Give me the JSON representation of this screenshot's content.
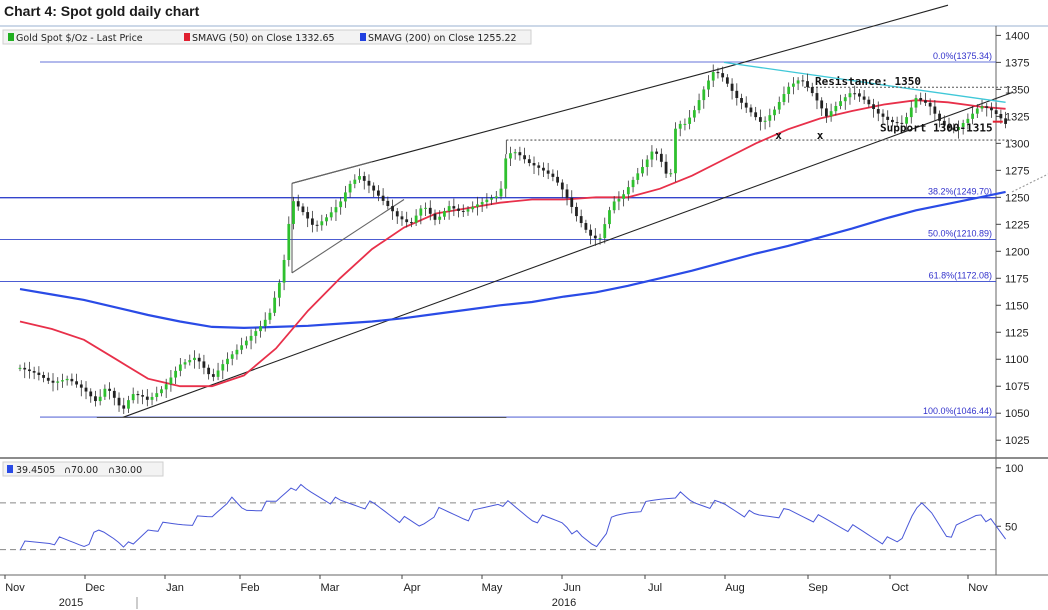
{
  "title": "Chart 4: Spot gold daily chart",
  "legend": [
    {
      "label": "Gold Spot $/Oz - Last Price",
      "color": "#22b022"
    },
    {
      "label": "SMAVG (50) on Close 1332.65",
      "color": "#e02030"
    },
    {
      "label": "SMAVG (200) on Close 1255.22",
      "color": "#2040e0"
    }
  ],
  "rsi_legend": {
    "value": "39.4505",
    "upper": "70.00",
    "lower": "30.00"
  },
  "annotations": {
    "resistance": "Resistance: 1350",
    "support": "Support 1300-1315",
    "x_marks": [
      "x",
      "x"
    ]
  },
  "chart_data": {
    "type": "candlestick",
    "y_ticks": [
      1025,
      1050,
      1075,
      1100,
      1125,
      1150,
      1175,
      1200,
      1225,
      1250,
      1275,
      1300,
      1325,
      1350,
      1375,
      1400
    ],
    "ylim": [
      1015,
      1405
    ],
    "rsi_ticks": [
      50,
      100
    ],
    "rsi_lim": [
      10,
      105
    ],
    "rsi_levels": [
      70,
      30
    ],
    "x_month_labels": [
      "Nov",
      "Dec",
      "Jan",
      "Feb",
      "Mar",
      "Apr",
      "May",
      "Jun",
      "Jul",
      "Aug",
      "Sep",
      "Oct",
      "Nov"
    ],
    "x_year_labels": [
      {
        "label": "2015",
        "under": "Nov"
      },
      {
        "label": "2016",
        "under": "Jun"
      }
    ],
    "fibonacci": [
      {
        "label": "0.0%(1375.34)",
        "value": 1375.34
      },
      {
        "label": "38.2%(1249.70)",
        "value": 1249.7
      },
      {
        "label": "50.0%(1210.89)",
        "value": 1210.89
      },
      {
        "label": "61.8%(1172.08)",
        "value": 1172.08
      },
      {
        "label": "100.0%(1046.44)",
        "value": 1046.44
      }
    ],
    "price_anchors": [
      [
        0,
        1092
      ],
      [
        0.5,
        1087
      ],
      [
        1,
        1078
      ],
      [
        1.5,
        1082
      ],
      [
        2,
        1072
      ],
      [
        2.4,
        1060
      ],
      [
        2.7,
        1075
      ],
      [
        3,
        1062
      ],
      [
        3.2,
        1052
      ],
      [
        3.5,
        1068
      ],
      [
        3.8,
        1066
      ],
      [
        4,
        1062
      ],
      [
        4.5,
        1074
      ],
      [
        5,
        1095
      ],
      [
        5.5,
        1102
      ],
      [
        6,
        1082
      ],
      [
        6.4,
        1098
      ],
      [
        7,
        1115
      ],
      [
        7.5,
        1130
      ],
      [
        7.8,
        1142
      ],
      [
        8.2,
        1180
      ],
      [
        8.5,
        1248
      ],
      [
        8.8,
        1238
      ],
      [
        9.2,
        1222
      ],
      [
        9.6,
        1232
      ],
      [
        10,
        1245
      ],
      [
        10.3,
        1262
      ],
      [
        10.6,
        1270
      ],
      [
        11,
        1258
      ],
      [
        11.4,
        1245
      ],
      [
        11.8,
        1232
      ],
      [
        12.2,
        1225
      ],
      [
        12.6,
        1243
      ],
      [
        13,
        1228
      ],
      [
        13.4,
        1242
      ],
      [
        13.8,
        1236
      ],
      [
        14.2,
        1242
      ],
      [
        14.6,
        1248
      ],
      [
        15,
        1252
      ],
      [
        15.2,
        1290
      ],
      [
        15.5,
        1292
      ],
      [
        15.9,
        1282
      ],
      [
        16.3,
        1276
      ],
      [
        16.7,
        1268
      ],
      [
        17,
        1255
      ],
      [
        17.4,
        1232
      ],
      [
        17.8,
        1215
      ],
      [
        18.1,
        1210
      ],
      [
        18.5,
        1245
      ],
      [
        18.8,
        1250
      ],
      [
        19.2,
        1268
      ],
      [
        19.5,
        1280
      ],
      [
        19.8,
        1295
      ],
      [
        20.1,
        1280
      ],
      [
        20.3,
        1262
      ],
      [
        20.5,
        1318
      ],
      [
        20.8,
        1318
      ],
      [
        21.1,
        1332
      ],
      [
        21.4,
        1352
      ],
      [
        21.7,
        1368
      ],
      [
        22,
        1360
      ],
      [
        22.4,
        1342
      ],
      [
        22.8,
        1330
      ],
      [
        23.2,
        1318
      ],
      [
        23.6,
        1332
      ],
      [
        24,
        1352
      ],
      [
        24.4,
        1360
      ],
      [
        24.8,
        1345
      ],
      [
        25.2,
        1325
      ],
      [
        25.6,
        1338
      ],
      [
        26,
        1348
      ],
      [
        26.4,
        1340
      ],
      [
        26.8,
        1328
      ],
      [
        27.2,
        1320
      ],
      [
        27.6,
        1318
      ],
      [
        28,
        1342
      ],
      [
        28.4,
        1336
      ],
      [
        28.8,
        1318
      ],
      [
        29.2,
        1312
      ],
      [
        29.6,
        1322
      ],
      [
        30,
        1335
      ],
      [
        30.3,
        1332
      ],
      [
        30.6,
        1325
      ],
      [
        30.8,
        1318
      ]
    ],
    "sma50_anchors": [
      [
        0,
        1135
      ],
      [
        1,
        1128
      ],
      [
        2,
        1118
      ],
      [
        3,
        1100
      ],
      [
        4,
        1082
      ],
      [
        5,
        1075
      ],
      [
        6,
        1075
      ],
      [
        7,
        1085
      ],
      [
        8,
        1110
      ],
      [
        9,
        1145
      ],
      [
        10,
        1175
      ],
      [
        11,
        1202
      ],
      [
        12,
        1222
      ],
      [
        13,
        1235
      ],
      [
        14,
        1240
      ],
      [
        15,
        1245
      ],
      [
        16,
        1248
      ],
      [
        17,
        1248
      ],
      [
        18,
        1250
      ],
      [
        19,
        1250
      ],
      [
        20,
        1258
      ],
      [
        21,
        1270
      ],
      [
        22,
        1285
      ],
      [
        23,
        1300
      ],
      [
        24,
        1313
      ],
      [
        25,
        1323
      ],
      [
        26,
        1330
      ],
      [
        27,
        1336
      ],
      [
        28,
        1340
      ],
      [
        29,
        1338
      ],
      [
        30,
        1334
      ],
      [
        30.8,
        1332
      ]
    ],
    "sma200_anchors": [
      [
        0,
        1165
      ],
      [
        1,
        1160
      ],
      [
        2,
        1155
      ],
      [
        3,
        1148
      ],
      [
        4,
        1141
      ],
      [
        5,
        1135
      ],
      [
        6,
        1130
      ],
      [
        7,
        1129
      ],
      [
        8,
        1130
      ],
      [
        9,
        1131
      ],
      [
        10,
        1133
      ],
      [
        11,
        1135
      ],
      [
        12,
        1138
      ],
      [
        13,
        1142
      ],
      [
        14,
        1146
      ],
      [
        15,
        1150
      ],
      [
        16,
        1153
      ],
      [
        17,
        1158
      ],
      [
        18,
        1162
      ],
      [
        19,
        1168
      ],
      [
        20,
        1175
      ],
      [
        21,
        1182
      ],
      [
        22,
        1190
      ],
      [
        23,
        1198
      ],
      [
        24,
        1205
      ],
      [
        25,
        1213
      ],
      [
        26,
        1221
      ],
      [
        27,
        1230
      ],
      [
        28,
        1238
      ],
      [
        29,
        1244
      ],
      [
        30,
        1250
      ],
      [
        30.8,
        1255
      ]
    ],
    "rsi_anchors": [
      [
        0,
        33
      ],
      [
        1,
        38
      ],
      [
        2,
        35
      ],
      [
        2.5,
        45
      ],
      [
        3,
        40
      ],
      [
        3.5,
        31
      ],
      [
        4,
        48
      ],
      [
        5,
        52
      ],
      [
        6,
        58
      ],
      [
        6.5,
        74
      ],
      [
        7,
        63
      ],
      [
        8,
        70
      ],
      [
        8.5,
        86
      ],
      [
        9,
        79
      ],
      [
        10,
        70
      ],
      [
        11,
        68
      ],
      [
        12,
        55
      ],
      [
        12.5,
        50
      ],
      [
        13,
        63
      ],
      [
        14,
        58
      ],
      [
        15,
        72
      ],
      [
        16,
        57
      ],
      [
        17,
        54
      ],
      [
        17.5,
        40
      ],
      [
        18,
        33
      ],
      [
        18.5,
        55
      ],
      [
        19,
        62
      ],
      [
        19.5,
        67
      ],
      [
        20,
        73
      ],
      [
        20.5,
        78
      ],
      [
        21,
        70
      ],
      [
        22,
        68
      ],
      [
        23,
        58
      ],
      [
        24,
        62
      ],
      [
        25,
        56
      ],
      [
        26,
        48
      ],
      [
        27,
        38
      ],
      [
        27.5,
        35
      ],
      [
        28,
        70
      ],
      [
        28.5,
        60
      ],
      [
        29,
        42
      ],
      [
        30,
        63
      ],
      [
        30.5,
        48
      ],
      [
        30.8,
        39
      ]
    ],
    "channel_upper": [
      [
        8.5,
        1263
      ],
      [
        22,
        1370
      ],
      [
        29,
        1428
      ]
    ],
    "channel_lower": [
      [
        3.2,
        1046
      ],
      [
        31,
        1347
      ]
    ],
    "flag_lines": [
      [
        [
          8.5,
          1180
        ],
        [
          12,
          1248
        ]
      ],
      [
        [
          8.5,
          1263
        ],
        [
          11,
          1283
        ]
      ]
    ],
    "resistance_trend": [
      [
        22,
        1375
      ],
      [
        30.8,
        1338
      ]
    ],
    "support_lines": [
      [
        15.2,
        1303
      ],
      [
        31,
        1303
      ]
    ],
    "bottom_line": [
      [
        2.4,
        1046
      ],
      [
        15.2,
        1046
      ]
    ],
    "dotted_extension": [
      [
        31,
        1255
      ],
      [
        32.5,
        1277
      ]
    ],
    "top_hline": [
      [
        2.4,
        1375
      ],
      [
        22,
        1375
      ]
    ]
  }
}
